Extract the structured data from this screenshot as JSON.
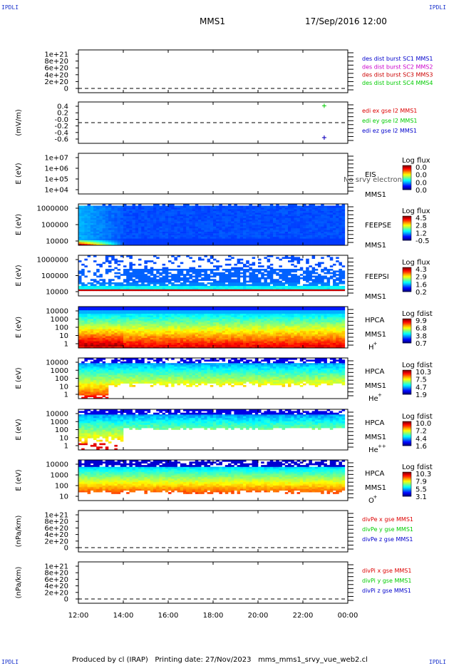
{
  "header": {
    "corner_label": "IPDLI",
    "spacecraft": "MMS1",
    "date_time": "17/Sep/2016 12:00"
  },
  "footer": {
    "produced_by": "Produced by cl (IRAP)",
    "printing_date": "Printing date: 27/Nov/2023",
    "script_name": "mms_mms1_srvy_vue_web2.cl"
  },
  "x_axis": {
    "ticks": [
      "12:00",
      "14:00",
      "16:00",
      "18:00",
      "20:00",
      "22:00",
      "00:00"
    ],
    "range_hours": [
      12,
      24
    ]
  },
  "colors": {
    "mms1": "#0000cc",
    "mms2": "#cc00cc",
    "mms3": "#cc0000",
    "mms4": "#00cc00",
    "x": "#dd0000",
    "y": "#00cc00",
    "z": "#0000cc"
  },
  "chart_data": [
    {
      "type": "line",
      "ylabel": "",
      "yticks": [
        "1e+21",
        "8e+20",
        "6e+20",
        "4e+20",
        "2e+20",
        "0"
      ],
      "legend": [
        {
          "label": "des dist burst SC1 MMS1",
          "color": "#0000cc"
        },
        {
          "label": "des dist burst SC2 MMS2",
          "color": "#cc00cc"
        },
        {
          "label": "des dist burst SC3 MMS3",
          "color": "#cc0000"
        },
        {
          "label": "des dist burst SC4 MMS4",
          "color": "#00cc00"
        }
      ],
      "zero_line": true
    },
    {
      "type": "scatter",
      "ylabel": "(mV/m)",
      "yticks": [
        "0.4",
        "0.2",
        "-0.0",
        "-0.2",
        "-0.4",
        "-0.6"
      ],
      "ylim": [
        -0.7,
        0.6
      ],
      "legend": [
        {
          "label": "edi ex gse l2 MMS1",
          "color": "#dd0000"
        },
        {
          "label": "edi ey gse l2 MMS1",
          "color": "#00cc00"
        },
        {
          "label": "edi ez gse l2 MMS1",
          "color": "#0000cc"
        }
      ],
      "points": [
        {
          "t": 22.95,
          "y": 0.48,
          "color": "#00cc00"
        },
        {
          "t": 22.95,
          "y": -0.52,
          "color": "#dd0000"
        },
        {
          "t": 22.95,
          "y": -0.52,
          "color": "#0000cc"
        }
      ],
      "zero_line": true
    },
    {
      "type": "heatmap",
      "ylabel": "E (eV)",
      "yticks": [
        "1e+07",
        "1e+06",
        "1e+05",
        "1e+04"
      ],
      "instrument": "EIS",
      "sub": "MMS1",
      "species": "",
      "overlay": "No srvy electron to",
      "cbar_title": "Log flux",
      "cbar_ticks": [
        "0.0",
        "0.0",
        "0.0",
        "0.0"
      ],
      "profile": "empty"
    },
    {
      "type": "heatmap",
      "ylabel": "E (eV)",
      "yticks": [
        "1000000",
        "100000",
        "10000"
      ],
      "instrument": "FEEPSE",
      "sub": "MMS1",
      "species": "",
      "cbar_title": "Log flux",
      "cbar_ticks": [
        "4.5",
        "2.8",
        "1.2",
        "-0.5"
      ],
      "profile": "feepse"
    },
    {
      "type": "heatmap",
      "ylabel": "E (eV)",
      "yticks": [
        "1000000",
        "100000",
        "10000"
      ],
      "instrument": "FEEPSI",
      "sub": "MMS1",
      "species": "",
      "cbar_title": "Log flux",
      "cbar_ticks": [
        "4.3",
        "2.9",
        "1.6",
        "0.2"
      ],
      "profile": "feepsi"
    },
    {
      "type": "heatmap",
      "ylabel": "E (eV)",
      "yticks": [
        "10000",
        "1000",
        "100",
        "10",
        "1"
      ],
      "instrument": "HPCA",
      "sub": "MMS1",
      "species": "H",
      "species_sup": "+",
      "cbar_title": "Log fdist",
      "cbar_ticks": [
        "9.9",
        "6.8",
        "3.8",
        "0.7"
      ],
      "profile": "hplus"
    },
    {
      "type": "heatmap",
      "ylabel": "E (eV)",
      "yticks": [
        "10000",
        "1000",
        "100",
        "10",
        "1"
      ],
      "instrument": "HPCA",
      "sub": "MMS1",
      "species": "He",
      "species_sup": "+",
      "cbar_title": "Log fdist",
      "cbar_ticks": [
        "10.3",
        "7.5",
        "4.7",
        "1.9"
      ],
      "profile": "heplus"
    },
    {
      "type": "heatmap",
      "ylabel": "E (eV)",
      "yticks": [
        "10000",
        "1000",
        "100",
        "10",
        "1"
      ],
      "instrument": "HPCA",
      "sub": "MMS1",
      "species": "He",
      "species_sup": "++",
      "cbar_title": "Log fdist",
      "cbar_ticks": [
        "10.0",
        "7.2",
        "4.4",
        "1.6"
      ],
      "profile": "hepp"
    },
    {
      "type": "heatmap",
      "ylabel": "E (eV)",
      "yticks": [
        "10000",
        "1000",
        "100",
        "10"
      ],
      "instrument": "HPCA",
      "sub": "MMS1",
      "species": "O",
      "species_sup": "+",
      "cbar_title": "Log fdist",
      "cbar_ticks": [
        "10.3",
        "7.9",
        "5.5",
        "3.1"
      ],
      "profile": "oplus"
    },
    {
      "type": "line",
      "ylabel": "(nPa/km)",
      "yticks": [
        "1e+21",
        "8e+20",
        "6e+20",
        "4e+20",
        "2e+20",
        "0"
      ],
      "legend": [
        {
          "label": "divPe x gse MMS1",
          "color": "#dd0000"
        },
        {
          "label": "divPe y gse MMS1",
          "color": "#00cc00"
        },
        {
          "label": "divPe z gse MMS1",
          "color": "#0000cc"
        }
      ],
      "zero_line": true
    },
    {
      "type": "line",
      "ylabel": "(nPa/km)",
      "yticks": [
        "1e+21",
        "8e+20",
        "6e+20",
        "4e+20",
        "2e+20",
        "0"
      ],
      "legend": [
        {
          "label": "divPi x gse MMS1",
          "color": "#dd0000"
        },
        {
          "label": "divPi y gse MMS1",
          "color": "#00cc00"
        },
        {
          "label": "divPi z gse MMS1",
          "color": "#0000cc"
        }
      ],
      "zero_line": true
    }
  ]
}
